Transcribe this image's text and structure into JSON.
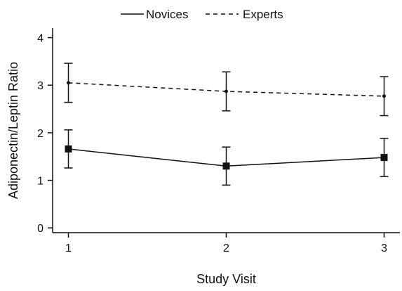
{
  "chart_data": {
    "type": "line",
    "xlabel": "Study Visit",
    "ylabel": "Adiponectin/Leptin Ratio",
    "x": [
      1,
      2,
      3
    ],
    "xticks": [
      "1",
      "2",
      "3"
    ],
    "yticks": [
      "0",
      "1",
      "2",
      "3",
      "4"
    ],
    "xlim": [
      0.9,
      3.1
    ],
    "ylim": [
      -0.1,
      4.2
    ],
    "grid": false,
    "legend_position": "top-center",
    "series": [
      {
        "name": "Novices",
        "line_style": "solid",
        "marker": "square",
        "values": [
          1.66,
          1.3,
          1.48
        ],
        "error_low": [
          1.26,
          0.9,
          1.08
        ],
        "error_high": [
          2.06,
          1.7,
          1.88
        ]
      },
      {
        "name": "Experts",
        "line_style": "dashed",
        "marker": "dot",
        "values": [
          3.05,
          2.87,
          2.77
        ],
        "error_low": [
          2.64,
          2.46,
          2.36
        ],
        "error_high": [
          3.46,
          3.28,
          3.18
        ]
      }
    ]
  }
}
